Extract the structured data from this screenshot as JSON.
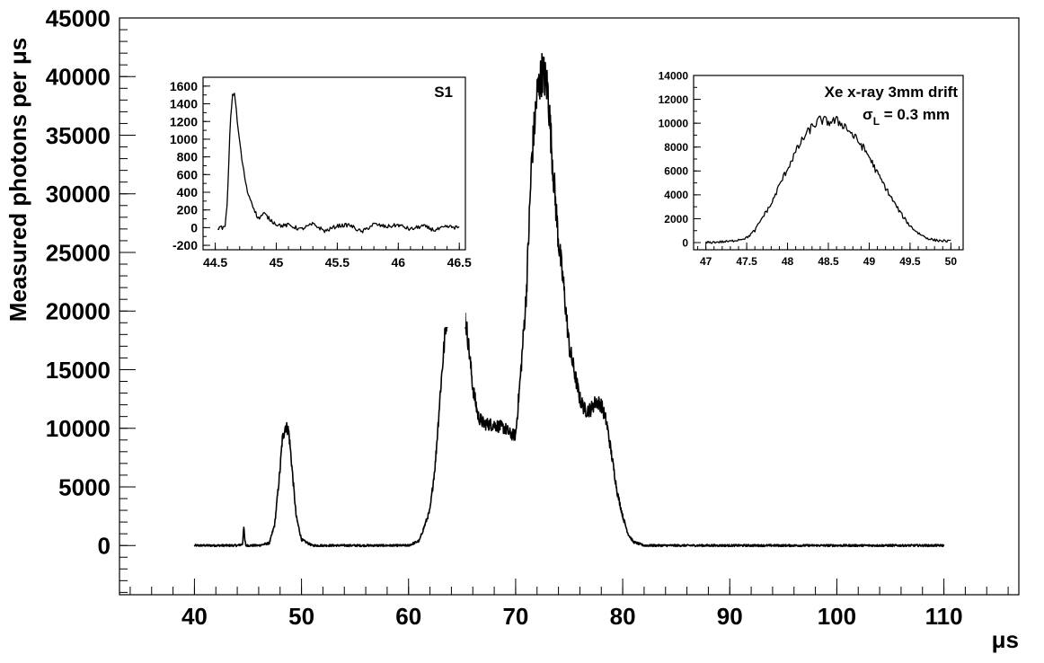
{
  "chart_data": [
    {
      "id": "main",
      "type": "line",
      "xlabel": "μs",
      "ylabel": "Measured photons per μs",
      "xlim": [
        33,
        117
      ],
      "ylim": [
        -4200,
        45000
      ],
      "xticks": [
        40,
        50,
        60,
        70,
        80,
        90,
        100,
        110
      ],
      "yticks": [
        0,
        5000,
        10000,
        15000,
        20000,
        25000,
        30000,
        35000,
        40000,
        45000
      ],
      "xtick_labels": [
        "40",
        "50",
        "60",
        "70",
        "80",
        "90",
        "100",
        "110"
      ],
      "ytick_labels": [
        "0",
        "5000",
        "10000",
        "15000",
        "20000",
        "25000",
        "30000",
        "35000",
        "40000",
        "45000"
      ],
      "grid": false,
      "series": [
        {
          "x": [
            40,
            44,
            44.5,
            44.6,
            44.7,
            44.8,
            45,
            46,
            47,
            47.5,
            48,
            48.2,
            48.5,
            48.8,
            49,
            49.5,
            50,
            51,
            55,
            60,
            61,
            62,
            62.5,
            63,
            63.5,
            64,
            64.5,
            65,
            65.5,
            66,
            66.5,
            67,
            68,
            69,
            69.5,
            70,
            70.5,
            71,
            71.5,
            72,
            72.5,
            73,
            73.5,
            74,
            74.5,
            75,
            76,
            76.5,
            77,
            77.5,
            78,
            78.5,
            79,
            79.5,
            80,
            80.5,
            81,
            82,
            85,
            90,
            100,
            110
          ],
          "y": [
            0,
            0,
            100,
            1700,
            500,
            0,
            0,
            0,
            200,
            1800,
            6500,
            9000,
            10200,
            9800,
            7800,
            2500,
            500,
            0,
            0,
            0,
            400,
            3000,
            7000,
            13500,
            19000,
            21000,
            22000,
            21300,
            18000,
            13500,
            11000,
            10400,
            10300,
            10000,
            9500,
            9400,
            15000,
            21500,
            33000,
            38500,
            40500,
            39000,
            32000,
            26000,
            22000,
            17000,
            12500,
            11500,
            11600,
            12300,
            12000,
            10500,
            7500,
            4500,
            2500,
            1000,
            300,
            0,
            0,
            0,
            0,
            0
          ]
        }
      ]
    },
    {
      "id": "inset-s1",
      "type": "line",
      "title": "S1",
      "xlim": [
        44.4,
        46.55
      ],
      "ylim": [
        -250,
        1700
      ],
      "xticks": [
        44.5,
        45,
        45.5,
        46,
        46.5
      ],
      "yticks": [
        -200,
        0,
        200,
        400,
        600,
        800,
        1000,
        1200,
        1400,
        1600
      ],
      "xtick_labels": [
        "44.5",
        "45",
        "45.5",
        "46",
        "46.5"
      ],
      "ytick_labels": [
        "-200",
        "0",
        "200",
        "400",
        "600",
        "800",
        "1000",
        "1200",
        "1400",
        "1600"
      ],
      "series": [
        {
          "x": [
            44.52,
            44.58,
            44.6,
            44.62,
            44.64,
            44.66,
            44.68,
            44.72,
            44.76,
            44.8,
            44.85,
            44.9,
            44.95,
            45.0,
            45.05,
            45.1,
            45.2,
            45.3,
            45.4,
            45.5,
            45.6,
            45.7,
            45.8,
            45.9,
            46.0,
            46.1,
            46.2,
            46.3,
            46.4,
            46.5
          ],
          "y": [
            0,
            0,
            300,
            1100,
            1500,
            1520,
            1200,
            750,
            420,
            280,
            100,
            160,
            90,
            40,
            20,
            30,
            -20,
            40,
            -40,
            20,
            30,
            -50,
            40,
            10,
            30,
            -20,
            20,
            -30,
            10,
            0
          ]
        }
      ]
    },
    {
      "id": "inset-xray",
      "type": "line",
      "title": "Xe x-ray 3mm drift",
      "subtitle": "σ",
      "subtitle_sub": "L",
      "subtitle_tail": " = 0.3 mm",
      "xlim": [
        46.85,
        50.15
      ],
      "ylim": [
        -600,
        14000
      ],
      "xticks": [
        47,
        47.5,
        48,
        48.5,
        49,
        49.5,
        50
      ],
      "yticks": [
        0,
        2000,
        4000,
        6000,
        8000,
        10000,
        12000,
        14000
      ],
      "xtick_labels": [
        "47",
        "47.5",
        "48",
        "48.5",
        "49",
        "49.5",
        "50"
      ],
      "ytick_labels": [
        "0",
        "2000",
        "4000",
        "6000",
        "8000",
        "10000",
        "12000",
        "14000"
      ],
      "series": [
        {
          "x": [
            47.0,
            47.3,
            47.5,
            47.6,
            47.7,
            47.8,
            47.9,
            48.0,
            48.1,
            48.2,
            48.3,
            48.4,
            48.5,
            48.6,
            48.7,
            48.8,
            48.9,
            49.0,
            49.1,
            49.2,
            49.3,
            49.4,
            49.5,
            49.6,
            49.7,
            49.8,
            50.0
          ],
          "y": [
            0,
            100,
            400,
            1000,
            2200,
            3200,
            4800,
            6200,
            7600,
            8800,
            9700,
            10300,
            10100,
            10200,
            9800,
            9000,
            8200,
            7200,
            5800,
            4600,
            3400,
            2300,
            1400,
            800,
            400,
            200,
            100
          ]
        }
      ]
    }
  ]
}
